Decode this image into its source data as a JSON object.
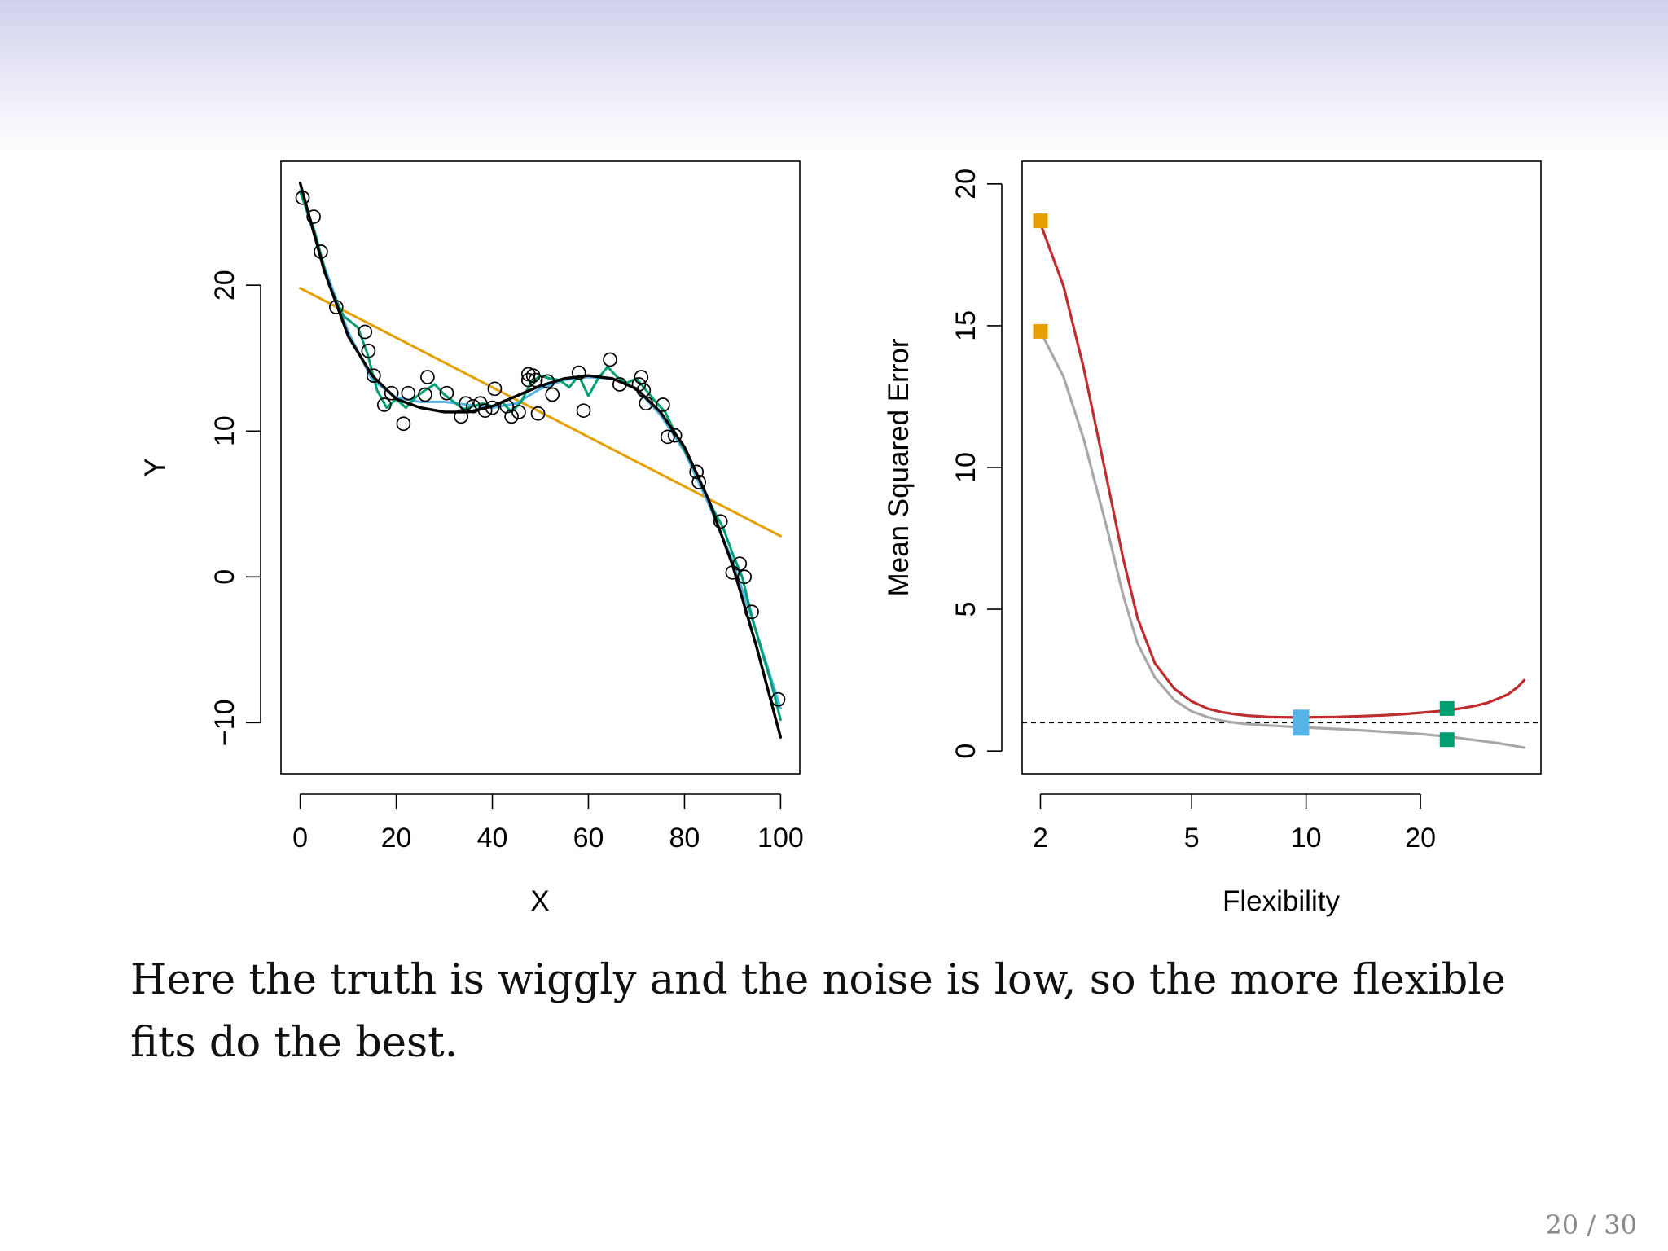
{
  "slide": {
    "caption": "Here the truth is wiggly and the noise is low, so the more flexible fits do the best.",
    "page_number": "20 / 30"
  },
  "colors": {
    "truth": "#000000",
    "linear": "#E69F00",
    "smooth_blue": "#56B4E9",
    "smooth_green": "#009E73",
    "test_mse": "#BE2E2E",
    "train_mse": "#A8A8A8",
    "min_test": "#56B4E9"
  },
  "chart_data": [
    {
      "type": "scatter",
      "xlabel": "X",
      "ylabel": "Y",
      "xlim": [
        -4,
        104
      ],
      "ylim": [
        -13.5,
        28.5
      ],
      "x_ticks": [
        0,
        20,
        40,
        60,
        80,
        100
      ],
      "x_tick_labels": [
        "0",
        "20",
        "40",
        "60",
        "80",
        "100"
      ],
      "y_ticks": [
        -10,
        0,
        10,
        20
      ],
      "y_tick_labels": [
        "−10",
        "0",
        "10",
        "20"
      ],
      "points": [
        [
          0.5,
          26.0
        ],
        [
          2.8,
          24.7
        ],
        [
          4.3,
          22.3
        ],
        [
          7.5,
          18.5
        ],
        [
          13.5,
          16.8
        ],
        [
          14.2,
          15.5
        ],
        [
          15.3,
          13.8
        ],
        [
          17.5,
          11.8
        ],
        [
          19.0,
          12.6
        ],
        [
          21.5,
          10.5
        ],
        [
          22.5,
          12.6
        ],
        [
          26.0,
          12.5
        ],
        [
          26.5,
          13.7
        ],
        [
          30.5,
          12.6
        ],
        [
          33.5,
          11.0
        ],
        [
          34.5,
          11.9
        ],
        [
          36.0,
          11.7
        ],
        [
          37.5,
          11.9
        ],
        [
          38.5,
          11.4
        ],
        [
          40.0,
          11.6
        ],
        [
          40.5,
          12.9
        ],
        [
          43.0,
          11.7
        ],
        [
          44.0,
          11.0
        ],
        [
          45.5,
          11.3
        ],
        [
          47.5,
          13.5
        ],
        [
          47.5,
          13.9
        ],
        [
          48.5,
          13.8
        ],
        [
          49.0,
          13.5
        ],
        [
          49.5,
          11.2
        ],
        [
          51.5,
          13.4
        ],
        [
          52.5,
          12.5
        ],
        [
          58.0,
          14.0
        ],
        [
          59.0,
          11.4
        ],
        [
          64.5,
          14.9
        ],
        [
          66.5,
          13.2
        ],
        [
          70.5,
          13.2
        ],
        [
          71.0,
          13.7
        ],
        [
          71.5,
          12.8
        ],
        [
          72.0,
          11.9
        ],
        [
          75.5,
          11.8
        ],
        [
          76.5,
          9.6
        ],
        [
          78.0,
          9.7
        ],
        [
          82.5,
          7.2
        ],
        [
          83.0,
          6.5
        ],
        [
          87.5,
          3.8
        ],
        [
          90.0,
          0.3
        ],
        [
          91.5,
          0.9
        ],
        [
          92.5,
          0.0
        ],
        [
          94.0,
          -2.4
        ],
        [
          99.5,
          -8.4
        ]
      ],
      "lines": [
        {
          "role": "truth",
          "x": [
            0,
            5,
            10,
            15,
            20,
            25,
            30,
            35,
            40,
            45,
            50,
            55,
            60,
            65,
            70,
            75,
            80,
            85,
            90,
            95,
            100
          ],
          "y": [
            27,
            21,
            16.5,
            13.8,
            12.2,
            11.6,
            11.3,
            11.3,
            11.7,
            12.4,
            13.1,
            13.6,
            13.8,
            13.6,
            12.9,
            11.3,
            8.9,
            5.3,
            0.8,
            -4.8,
            -11.0
          ]
        },
        {
          "role": "linear",
          "x": [
            0,
            100
          ],
          "y": [
            19.8,
            2.8
          ]
        },
        {
          "role": "smooth_blue",
          "x": [
            0,
            5,
            10,
            15,
            20,
            25,
            30,
            35,
            40,
            45,
            50,
            55,
            60,
            65,
            70,
            75,
            80,
            85,
            90,
            95,
            100
          ],
          "y": [
            26.5,
            21.3,
            16.8,
            13.5,
            12.3,
            12.0,
            12.0,
            11.8,
            11.6,
            11.9,
            12.9,
            13.5,
            13.7,
            13.6,
            12.9,
            11.1,
            8.6,
            5.0,
            1.1,
            -3.8,
            -9.0
          ]
        },
        {
          "role": "smooth_green",
          "x": [
            0,
            3,
            6,
            9,
            12,
            14,
            16,
            18,
            20,
            22,
            24,
            26,
            28,
            30,
            32,
            34,
            36,
            38,
            40,
            42,
            44,
            46,
            48,
            50,
            52,
            54,
            56,
            58,
            60,
            62,
            64,
            66,
            68,
            70,
            72,
            74,
            76,
            78,
            80,
            82,
            84,
            86,
            88,
            90,
            92,
            94,
            96,
            98,
            100
          ],
          "y": [
            26.4,
            23.7,
            20.0,
            17.9,
            17.1,
            15.3,
            12.8,
            11.6,
            12.2,
            11.6,
            12.3,
            12.8,
            13.2,
            12.5,
            12.0,
            11.5,
            11.7,
            11.9,
            11.7,
            12.0,
            11.3,
            12.0,
            13.3,
            13.8,
            13.6,
            13.5,
            13.0,
            13.8,
            12.4,
            13.6,
            14.4,
            13.7,
            13.3,
            13.6,
            12.8,
            12.0,
            11.3,
            9.9,
            8.7,
            7.4,
            6.0,
            4.6,
            3.4,
            1.6,
            0.0,
            -2.7,
            -5.0,
            -7.2,
            -9.8
          ]
        }
      ]
    },
    {
      "type": "line",
      "xlabel": "Flexibility",
      "ylabel": "Mean Squared Error",
      "x_scale": "log",
      "xlim": [
        1.79,
        41.5
      ],
      "ylim": [
        -0.8,
        20.8
      ],
      "x_ticks": [
        2,
        5,
        10,
        20
      ],
      "x_tick_labels": [
        "2",
        "5",
        "10",
        "20"
      ],
      "y_ticks": [
        0,
        5,
        10,
        15,
        20
      ],
      "y_tick_labels": [
        "0",
        "5",
        "10",
        "15",
        "20"
      ],
      "reference_line": 1.0,
      "series": [
        {
          "role": "test_mse",
          "x": [
            2,
            2.3,
            2.6,
            3.0,
            3.3,
            3.6,
            4.0,
            4.5,
            5.0,
            5.5,
            6.0,
            6.5,
            7.0,
            8.0,
            9.0,
            10,
            12,
            14,
            16,
            18,
            20,
            22,
            24,
            26,
            28,
            30,
            32,
            34,
            36,
            37.5
          ],
          "y": [
            18.6,
            16.4,
            13.5,
            9.5,
            6.8,
            4.7,
            3.1,
            2.2,
            1.75,
            1.5,
            1.37,
            1.3,
            1.25,
            1.2,
            1.19,
            1.19,
            1.2,
            1.23,
            1.26,
            1.3,
            1.35,
            1.4,
            1.45,
            1.52,
            1.6,
            1.7,
            1.85,
            2.0,
            2.25,
            2.5
          ]
        },
        {
          "role": "train_mse",
          "x": [
            2,
            2.3,
            2.6,
            3.0,
            3.3,
            3.6,
            4.0,
            4.5,
            5.0,
            5.5,
            6.0,
            6.5,
            7.0,
            8.0,
            9.0,
            10,
            12,
            14,
            16,
            18,
            20,
            24,
            28,
            32,
            37.5
          ],
          "y": [
            14.8,
            13.2,
            11.0,
            7.8,
            5.5,
            3.8,
            2.6,
            1.8,
            1.4,
            1.2,
            1.07,
            1.0,
            0.95,
            0.9,
            0.86,
            0.83,
            0.78,
            0.73,
            0.68,
            0.64,
            0.6,
            0.5,
            0.38,
            0.28,
            0.12
          ]
        }
      ],
      "markers": [
        {
          "role": "linear",
          "x": 2,
          "y": 18.7
        },
        {
          "role": "linear",
          "x": 2,
          "y": 14.8
        },
        {
          "role": "min_test",
          "x": 9.7,
          "y": 1.0
        },
        {
          "role": "smooth_green",
          "x": 23.5,
          "y": 1.5
        },
        {
          "role": "smooth_green",
          "x": 23.5,
          "y": 0.4
        }
      ]
    }
  ]
}
